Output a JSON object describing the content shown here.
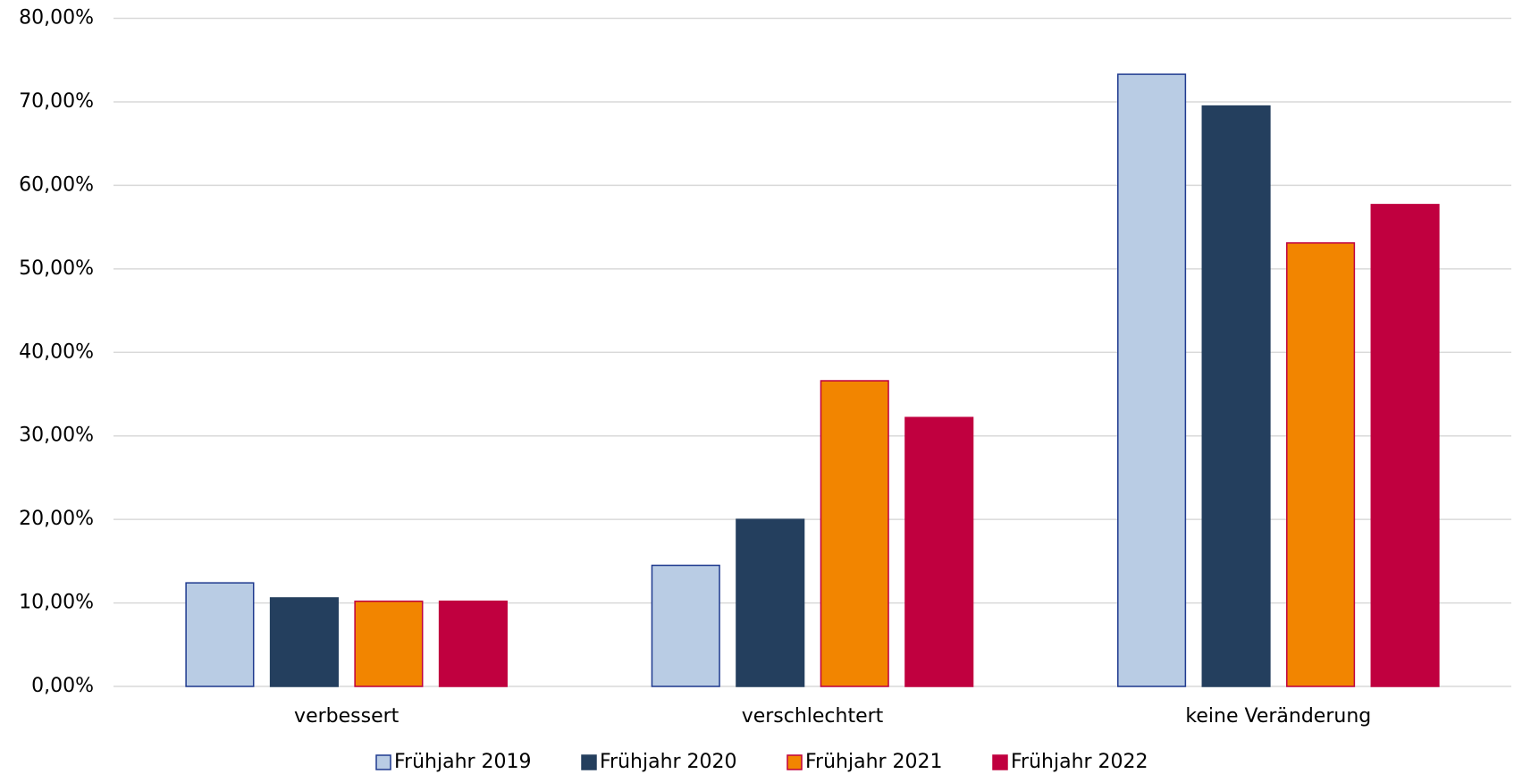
{
  "chart_data": {
    "type": "bar",
    "categories": [
      "verbessert",
      "verschlechtert",
      "keine Veränderung"
    ],
    "series": [
      {
        "name": "Frühjahr 2019",
        "color": "#b9cce4",
        "stroke": "#1f3a8f",
        "values": [
          12.4,
          14.5,
          73.3
        ]
      },
      {
        "name": "Frühjahr 2020",
        "color": "#243f5e",
        "stroke": "#243f5e",
        "values": [
          10.6,
          20.0,
          69.5
        ]
      },
      {
        "name": "Frühjahr 2021",
        "color": "#f28500",
        "stroke": "#c0003f",
        "values": [
          10.2,
          36.6,
          53.1
        ]
      },
      {
        "name": "Frühjahr 2022",
        "color": "#c0003f",
        "stroke": "#c0003f",
        "values": [
          10.2,
          32.2,
          57.7
        ]
      }
    ],
    "ylim": [
      0,
      80
    ],
    "yticks": [
      {
        "value": 0,
        "label": "0,00%"
      },
      {
        "value": 10,
        "label": "10,00%"
      },
      {
        "value": 20,
        "label": "20,00%"
      },
      {
        "value": 30,
        "label": "30,00%"
      },
      {
        "value": 40,
        "label": "40,00%"
      },
      {
        "value": 50,
        "label": "50,00%"
      },
      {
        "value": 60,
        "label": "60,00%"
      },
      {
        "value": 70,
        "label": "70,00%"
      },
      {
        "value": 80,
        "label": "80,00%"
      }
    ],
    "grid": true,
    "legend": "bottom"
  }
}
